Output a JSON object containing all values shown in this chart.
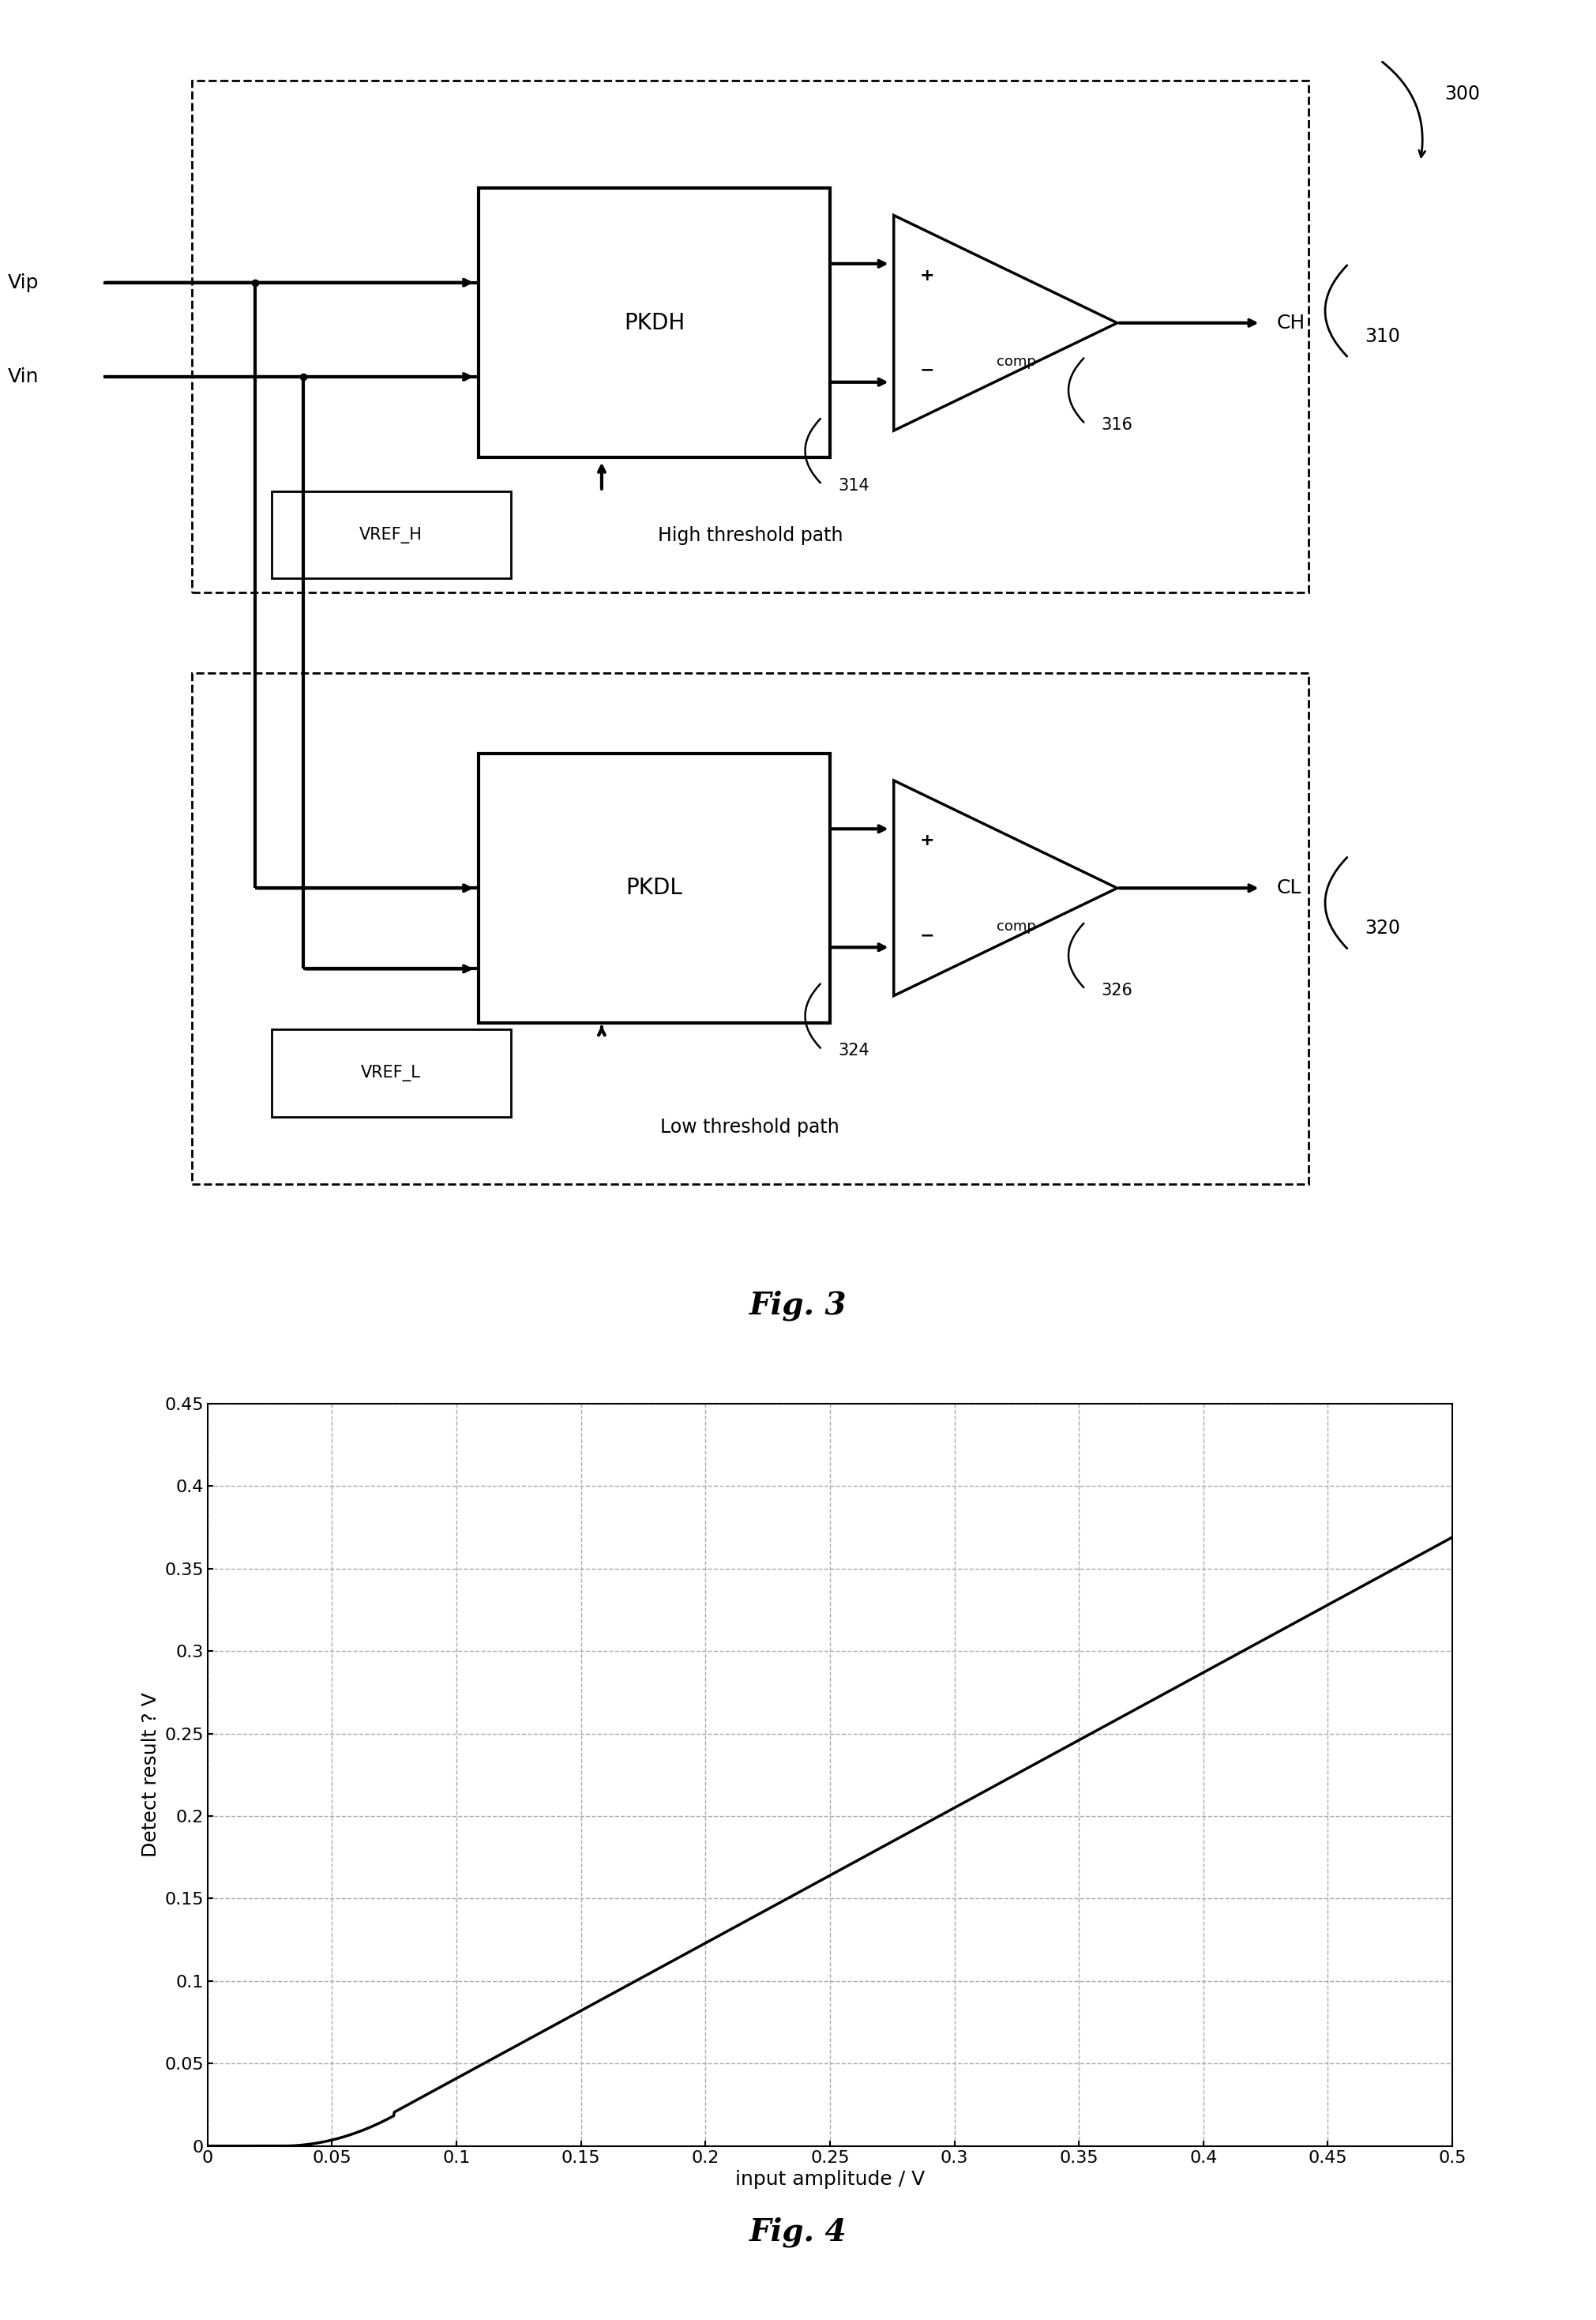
{
  "fig_width": 20.21,
  "fig_height": 29.37,
  "bg_color": "#ffffff",
  "graph": {
    "xlabel": "input amplitude / V",
    "ylabel": "Detect result ? V",
    "xlim": [
      0,
      0.5
    ],
    "ylim": [
      0,
      0.45
    ],
    "xticks": [
      0,
      0.05,
      0.1,
      0.15,
      0.2,
      0.25,
      0.3,
      0.35,
      0.4,
      0.45,
      0.5
    ],
    "yticks": [
      0,
      0.05,
      0.1,
      0.15,
      0.2,
      0.25,
      0.3,
      0.35,
      0.4,
      0.45
    ],
    "line_color": "#000000",
    "line_width": 2.5,
    "grid_color": "#aaaaaa",
    "grid_style": "--"
  },
  "fig3_label": "Fig. 3",
  "fig4_label": "Fig. 4"
}
